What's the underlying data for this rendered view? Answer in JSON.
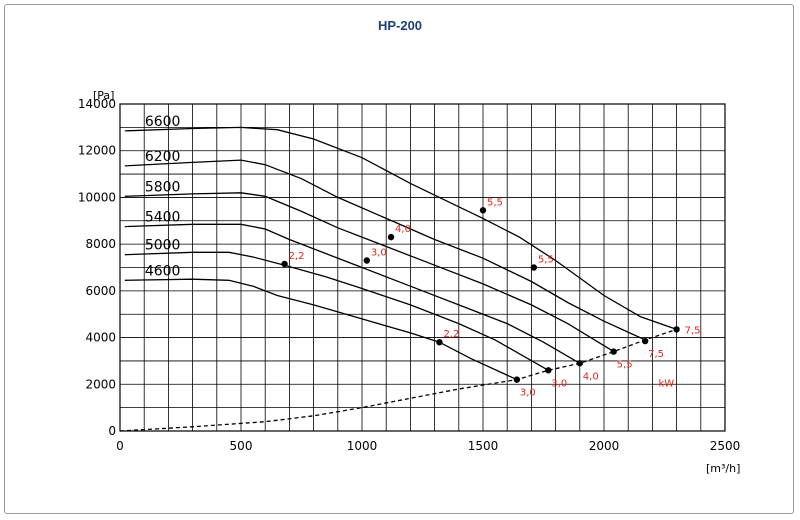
{
  "title": "HP-200",
  "chart_data": {
    "type": "line",
    "title": "HP-200",
    "ylabel": "[Pa]",
    "xlabel": "[m³/h]",
    "xlim": [
      0,
      2500
    ],
    "ylim": [
      0,
      14000
    ],
    "xticks": [
      0,
      500,
      1000,
      1500,
      2000,
      2500
    ],
    "yticks": [
      0,
      2000,
      4000,
      6000,
      8000,
      10000,
      12000,
      14000
    ],
    "grid": true,
    "series": [
      {
        "name": "6600",
        "x": [
          20,
          300,
          500,
          650,
          800,
          1000,
          1200,
          1400,
          1500,
          1650,
          1800,
          2000,
          2150,
          2300
        ],
        "y": [
          12850,
          12950,
          13000,
          12900,
          12500,
          11700,
          10600,
          9600,
          9100,
          8300,
          7300,
          5800,
          4900,
          4350
        ]
      },
      {
        "name": "6200",
        "x": [
          20,
          300,
          500,
          600,
          750,
          900,
          1100,
          1300,
          1500,
          1700,
          1850,
          2000,
          2170
        ],
        "y": [
          11350,
          11500,
          11600,
          11400,
          10800,
          10000,
          9100,
          8200,
          7400,
          6400,
          5500,
          4700,
          3900
        ]
      },
      {
        "name": "5800",
        "x": [
          20,
          300,
          500,
          600,
          750,
          900,
          1100,
          1300,
          1500,
          1700,
          1850,
          2040
        ],
        "y": [
          10050,
          10150,
          10200,
          10050,
          9400,
          8700,
          7900,
          7100,
          6300,
          5400,
          4600,
          3400
        ]
      },
      {
        "name": "5400",
        "x": [
          20,
          300,
          500,
          600,
          700,
          850,
          1000,
          1200,
          1400,
          1600,
          1750,
          1900
        ],
        "y": [
          8750,
          8850,
          8850,
          8650,
          8200,
          7600,
          7000,
          6200,
          5400,
          4600,
          3800,
          2900
        ]
      },
      {
        "name": "5000",
        "x": [
          20,
          300,
          450,
          550,
          680,
          850,
          1000,
          1200,
          1400,
          1550,
          1770
        ],
        "y": [
          7550,
          7650,
          7650,
          7450,
          7100,
          6600,
          6100,
          5400,
          4600,
          3900,
          2600
        ]
      },
      {
        "name": "4600",
        "x": [
          20,
          300,
          450,
          550,
          650,
          800,
          1000,
          1200,
          1320,
          1450,
          1640
        ],
        "y": [
          6450,
          6500,
          6450,
          6200,
          5800,
          5400,
          4800,
          4200,
          3800,
          3100,
          2200
        ]
      },
      {
        "name": "kW",
        "dashed": true,
        "x": [
          0,
          300,
          600,
          800,
          1000,
          1200,
          1400,
          1640,
          1770,
          1900,
          2040,
          2170,
          2300
        ],
        "y": [
          0,
          180,
          400,
          650,
          1000,
          1400,
          1800,
          2200,
          2600,
          2900,
          3400,
          3900,
          4350
        ]
      }
    ],
    "points": [
      {
        "x": 680,
        "y": 7150,
        "label": "2,2",
        "pos": "up"
      },
      {
        "x": 1320,
        "y": 3800,
        "label": "2,2",
        "pos": "up"
      },
      {
        "x": 1020,
        "y": 7300,
        "label": "3,0",
        "pos": "up"
      },
      {
        "x": 1640,
        "y": 2200,
        "label": "3,0",
        "pos": "down"
      },
      {
        "x": 1120,
        "y": 8300,
        "label": "4,0",
        "pos": "up"
      },
      {
        "x": 1770,
        "y": 2600,
        "label": "3,0",
        "pos": "down"
      },
      {
        "x": 1500,
        "y": 9450,
        "label": "5,5",
        "pos": "up"
      },
      {
        "x": 1900,
        "y": 2900,
        "label": "4,0",
        "pos": "down"
      },
      {
        "x": 1710,
        "y": 7000,
        "label": "5,5",
        "pos": "up"
      },
      {
        "x": 2040,
        "y": 3400,
        "label": "5,5",
        "pos": "down"
      },
      {
        "x": 2170,
        "y": 3850,
        "label": "7,5",
        "pos": "down"
      },
      {
        "x": 2300,
        "y": 4350,
        "label": "7,5",
        "pos": "right"
      }
    ],
    "power_unit_label": "kW"
  }
}
